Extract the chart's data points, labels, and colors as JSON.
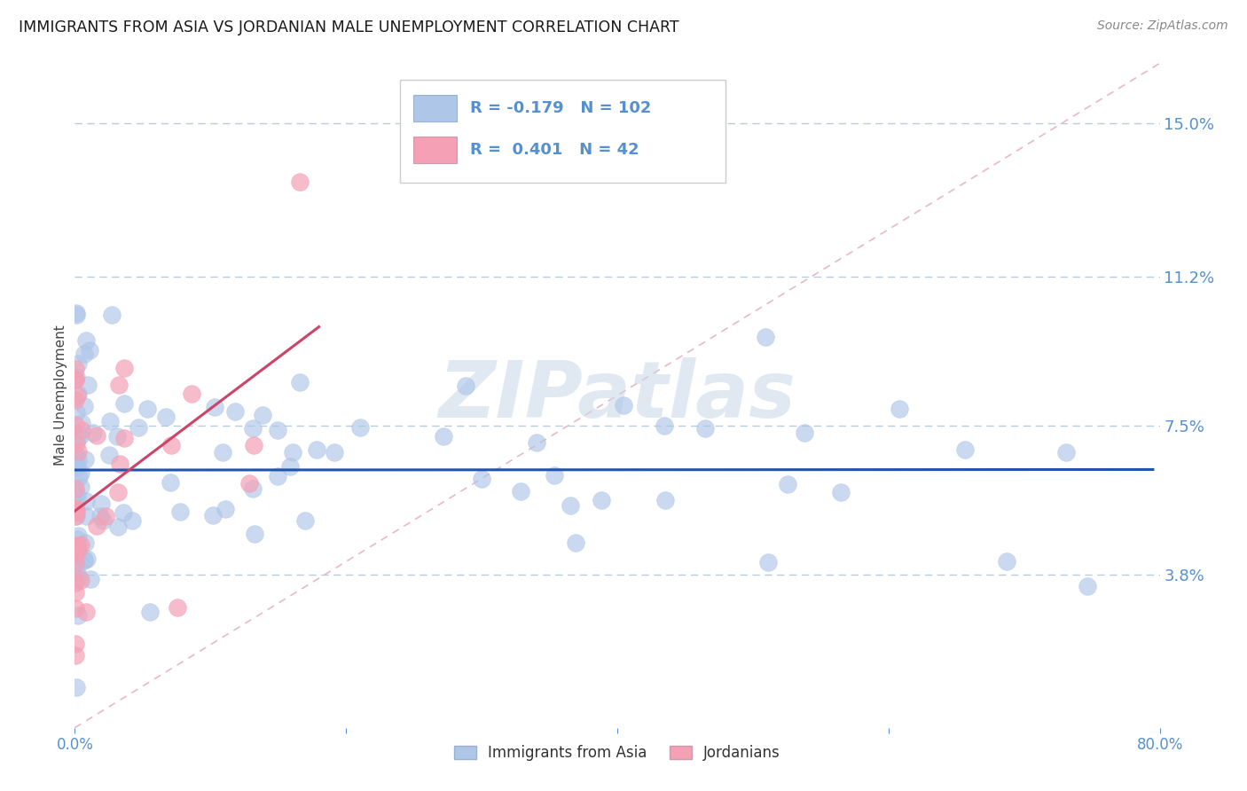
{
  "title": "IMMIGRANTS FROM ASIA VS JORDANIAN MALE UNEMPLOYMENT CORRELATION CHART",
  "source_text": "Source: ZipAtlas.com",
  "ylabel": "Male Unemployment",
  "xlim": [
    0.0,
    0.8
  ],
  "ylim": [
    0.0,
    0.165
  ],
  "yticks": [
    0.038,
    0.075,
    0.112,
    0.15
  ],
  "ytick_labels": [
    "3.8%",
    "7.5%",
    "11.2%",
    "15.0%"
  ],
  "xtick_labels": [
    "0.0%",
    "",
    "",
    "",
    "80.0%"
  ],
  "xticks": [
    0.0,
    0.2,
    0.4,
    0.6,
    0.8
  ],
  "series1_name": "Immigrants from Asia",
  "series1_R": "-0.179",
  "series1_N": "102",
  "series1_color": "#aec6e8",
  "series1_line_color": "#2255aa",
  "series2_name": "Jordanians",
  "series2_R": "0.401",
  "series2_N": "42",
  "series2_color": "#f5a0b5",
  "series2_line_color": "#cc4466",
  "series2_dash_color": "#f0a0b0",
  "title_color": "#1a1a1a",
  "title_fontsize": 12.5,
  "axis_color": "#5590d0",
  "background_color": "#ffffff",
  "grid_color": "#b0c8d8",
  "watermark": "ZIPatlas",
  "watermark_color": "#c8d8e8"
}
